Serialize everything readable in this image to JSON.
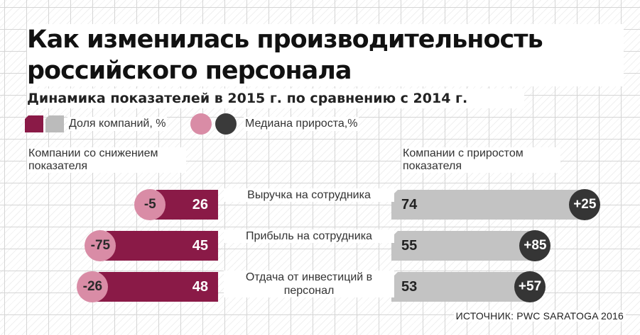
{
  "header": {
    "title": "Как изменилась производительность российского персонала",
    "subtitle": "Динамика показателей в 2015 г. по сравнению с 2014 г."
  },
  "legend": {
    "share_label": "Доля компаний, %",
    "median_label": "Медиана прироста,%"
  },
  "side_labels": {
    "left": "Компании со снижением показателя",
    "right": "Компании с приростом показателя"
  },
  "colors": {
    "decline_bar": "#8a1a47",
    "growth_bar": "#c3c3c3",
    "decline_median": "#d98ca6",
    "growth_median": "#353535"
  },
  "chart_data": {
    "type": "bar",
    "categories": [
      "Выручка на сотрудника",
      "Прибыль на сотрудника",
      "Отдача от инвестиций в персонал"
    ],
    "series": [
      {
        "name": "Компании со снижением показателя",
        "values": [
          26,
          45,
          48
        ]
      },
      {
        "name": "Компании с приростом показателя",
        "values": [
          74,
          55,
          53
        ]
      }
    ],
    "medians": {
      "decline": [
        -5,
        -75,
        -26
      ],
      "growth": [
        25,
        85,
        57
      ]
    },
    "median_labels": {
      "decline": [
        "-5",
        "-75",
        "-26"
      ],
      "growth": [
        "+25",
        "+85",
        "+57"
      ]
    },
    "xlim": [
      0,
      100
    ]
  },
  "source": "ИСТОЧНИК: PWC SARATOGA 2016"
}
